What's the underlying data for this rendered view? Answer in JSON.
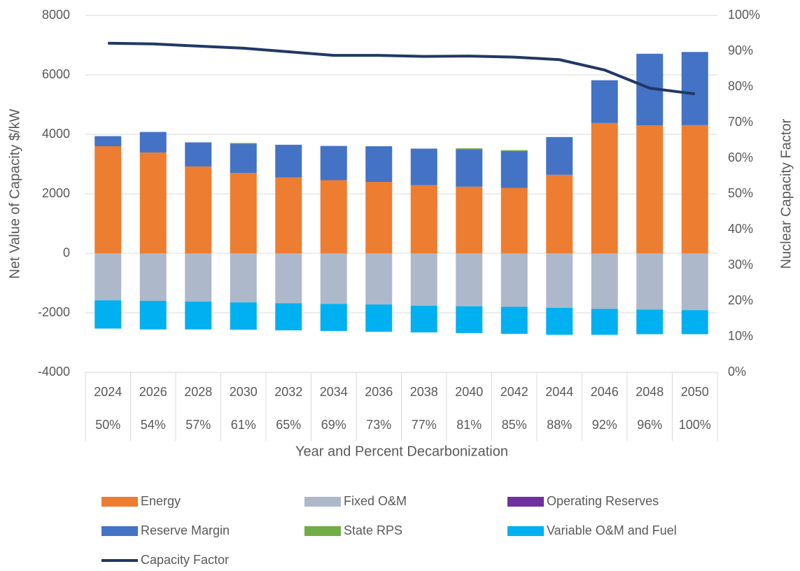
{
  "chart_data": {
    "type": "bar",
    "y_label": "Net Value of Capacity $/kW",
    "y2_label": "Nuclear Capacity Factor",
    "x_label": "Year and Percent Decarbonization",
    "categories": [
      "2024",
      "2026",
      "2028",
      "2030",
      "2032",
      "2034",
      "2036",
      "2038",
      "2040",
      "2042",
      "2044",
      "2046",
      "2048",
      "2050"
    ],
    "category_subtitles": [
      "50%",
      "54%",
      "57%",
      "61%",
      "65%",
      "69%",
      "73%",
      "77%",
      "81%",
      "85%",
      "88%",
      "92%",
      "96%",
      "100%"
    ],
    "series": [
      {
        "name": "Energy",
        "color": "#ed7d31",
        "values": [
          3600,
          3390,
          2920,
          2700,
          2550,
          2460,
          2400,
          2290,
          2240,
          2200,
          2640,
          4380,
          4300,
          4310
        ]
      },
      {
        "name": "Fixed O&M",
        "color": "#adb9ca",
        "values": [
          -1580,
          -1600,
          -1620,
          -1650,
          -1680,
          -1700,
          -1720,
          -1760,
          -1780,
          -1800,
          -1830,
          -1870,
          -1890,
          -1910
        ]
      },
      {
        "name": "Operating Reserves",
        "color": "#7030a0",
        "values": [
          0,
          0,
          0,
          0,
          0,
          0,
          0,
          0,
          0,
          0,
          0,
          0,
          0,
          0
        ]
      },
      {
        "name": "Reserve Margin",
        "color": "#4472c4",
        "values": [
          340,
          690,
          810,
          980,
          1100,
          1150,
          1200,
          1230,
          1260,
          1240,
          1270,
          1440,
          2410,
          2460
        ]
      },
      {
        "name": "State RPS",
        "color": "#70ad47",
        "values": [
          0,
          0,
          0,
          30,
          0,
          0,
          0,
          0,
          30,
          30,
          0,
          0,
          0,
          0
        ]
      },
      {
        "name": "Variable O&M and Fuel",
        "color": "#00b0f0",
        "values": [
          -950,
          -960,
          -940,
          -920,
          -910,
          -910,
          -920,
          -900,
          -900,
          -910,
          -910,
          -870,
          -830,
          -810
        ]
      },
      {
        "name": "Capacity Factor",
        "color": "#203864",
        "type": "line",
        "axis": "y2",
        "values": [
          92.2,
          92.0,
          91.4,
          90.8,
          89.8,
          88.8,
          88.8,
          88.5,
          88.6,
          88.3,
          87.6,
          84.7,
          79.6,
          78.0
        ]
      }
    ],
    "ylim": [
      -4000,
      8000
    ],
    "yticks": [
      -4000,
      -2000,
      0,
      2000,
      4000,
      6000,
      8000
    ],
    "y2lim": [
      0,
      100
    ],
    "y2ticks": [
      {
        "value": 0,
        "label": "0%"
      },
      {
        "value": 10,
        "label": "10%"
      },
      {
        "value": 20,
        "label": "20%"
      },
      {
        "value": 30,
        "label": "30%"
      },
      {
        "value": 40,
        "label": "40%"
      },
      {
        "value": 50,
        "label": "50%"
      },
      {
        "value": 60,
        "label": "60%"
      },
      {
        "value": 70,
        "label": "70%"
      },
      {
        "value": 80,
        "label": "80%"
      },
      {
        "value": 90,
        "label": "90%"
      },
      {
        "value": 100,
        "label": "100%"
      }
    ],
    "grid": true,
    "legend": "bottom"
  }
}
